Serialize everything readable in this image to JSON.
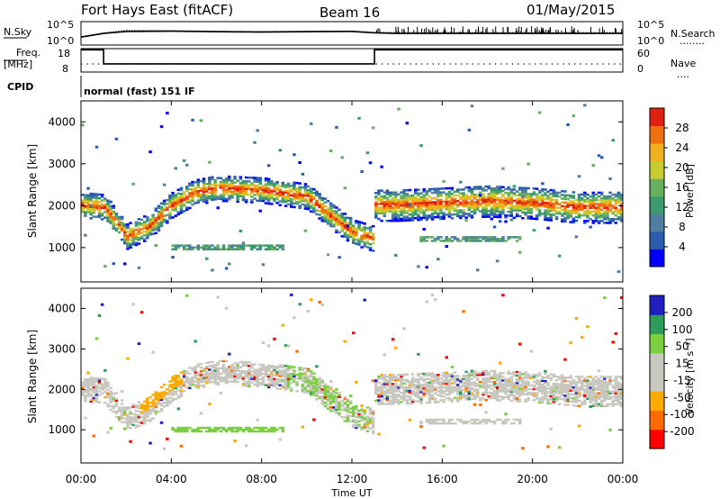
{
  "header": {
    "station": "Fort Hays East (fitACF)",
    "beam": "Beam 16",
    "date": "01/May/2015"
  },
  "noise_panel": {
    "left_label": "N.Sky",
    "left_ticks": [
      "10^5",
      "10^0"
    ],
    "right_ticks": [
      "10^5",
      "10^0"
    ],
    "right_label": "N.Search",
    "right_legend_line": "........"
  },
  "freq_panel": {
    "left_label_1": "Freq.",
    "left_label_2": "[MHz]",
    "left_ticks": [
      "18",
      "8"
    ],
    "right_ticks": [
      "60",
      "0"
    ],
    "right_label": "Nave",
    "right_legend_line": "...."
  },
  "cpid": {
    "label": "CPID",
    "value": "normal (fast) 151 IF"
  },
  "power_panel": {
    "ylabel": "Slant Range [km]",
    "yticks": [
      "4000",
      "3000",
      "2000",
      "1000"
    ],
    "colorbar_label": "Power [dB]",
    "colorbar_ticks": [
      "28",
      "24",
      "20",
      "16",
      "12",
      "8",
      "4"
    ]
  },
  "velocity_panel": {
    "ylabel": "Slant Range [km]",
    "yticks": [
      "4000",
      "3000",
      "2000",
      "1000"
    ],
    "colorbar_label": "Velocity [m s⁻¹]",
    "colorbar_ticks": [
      "200",
      "100",
      "50",
      "15",
      "-15",
      "-50",
      "-100",
      "-200"
    ]
  },
  "xaxis": {
    "ticks": [
      "00:00",
      "04:00",
      "08:00",
      "12:00",
      "16:00",
      "20:00",
      "00:00"
    ],
    "label": "Time UT"
  },
  "colors": {
    "power_scale": [
      "#0000ff",
      "#2a5cb0",
      "#4f7ea0",
      "#3b9a6f",
      "#66b060",
      "#c8cc30",
      "#f0b020",
      "#f07010",
      "#e02010"
    ],
    "velocity_scale": [
      "#ff0000",
      "#ff6a00",
      "#ffaa00",
      "#c8c8c0",
      "#c8c8c0",
      "#7ad040",
      "#2e9c5a",
      "#2020c0"
    ]
  },
  "chart_data": [
    {
      "type": "line",
      "title": "Fort Hays East (fitACF) Beam 16 01/May/2015",
      "panel": "noise",
      "xlabel": "Time UT",
      "x_range_hours": [
        0,
        24
      ],
      "series": [
        {
          "name": "N.Sky",
          "x": [
            0,
            1,
            2,
            4,
            6,
            8,
            10,
            12,
            13,
            14,
            16,
            18,
            20,
            22,
            24
          ],
          "values": [
            50,
            300,
            800,
            900,
            700,
            600,
            700,
            800,
            400,
            300,
            300,
            300,
            300,
            300,
            300
          ]
        },
        {
          "name": "N.Search",
          "x": [
            0,
            1,
            2,
            4,
            6,
            8,
            10,
            12,
            13,
            14,
            16,
            18,
            20,
            22,
            24
          ],
          "values": [
            60,
            400,
            1500,
            1200,
            900,
            800,
            900,
            1000,
            600,
            500,
            500,
            500,
            500,
            500,
            500
          ]
        }
      ],
      "ylim": [
        "10^0",
        "10^5"
      ],
      "yscale": "log"
    },
    {
      "type": "line",
      "panel": "frequency",
      "x_range_hours": [
        0,
        24
      ],
      "series": [
        {
          "name": "Freq. [MHz]",
          "x": [
            0,
            1,
            1,
            13,
            13,
            24
          ],
          "values": [
            17.5,
            17.5,
            11.5,
            11.5,
            17.5,
            17.5
          ]
        },
        {
          "name": "Nave",
          "x": [
            0,
            24
          ],
          "values": [
            13,
            13
          ]
        }
      ],
      "ylim_left": [
        8,
        18
      ],
      "ylim_right": [
        0,
        60
      ]
    },
    {
      "type": "heatmap",
      "panel": "power",
      "ylabel": "Slant Range [km]",
      "xlabel": "Time UT",
      "x_range_hours": [
        0,
        24
      ],
      "ylim": [
        180,
        4500
      ],
      "value_label": "Power [dB]",
      "value_range": [
        0,
        30
      ],
      "main_band_center_km": {
        "x": [
          0,
          1,
          2,
          3,
          4,
          5,
          6,
          8,
          10,
          11,
          12,
          12.9,
          13,
          14,
          16,
          18,
          20,
          22,
          24
        ],
        "values": [
          2000,
          1950,
          1250,
          1500,
          2000,
          2300,
          2400,
          2350,
          2200,
          1750,
          1350,
          1200,
          2000,
          2000,
          2050,
          2100,
          2050,
          1950,
          1950
        ]
      },
      "secondary_echoes_km": [
        {
          "x_start": 4,
          "x_end": 9,
          "range_km": 1000
        },
        {
          "x_start": 15,
          "x_end": 19.5,
          "range_km": 1200
        }
      ]
    },
    {
      "type": "heatmap",
      "panel": "velocity",
      "ylabel": "Slant Range [km]",
      "xlabel": "Time UT",
      "x_range_hours": [
        0,
        24
      ],
      "ylim": [
        180,
        4500
      ],
      "value_label": "Velocity [m s^-1]",
      "value_range": [
        -200,
        200
      ],
      "main_band_center_km": {
        "x": [
          0,
          1,
          2,
          3,
          4,
          5,
          6,
          8,
          10,
          11,
          12,
          12.9,
          13,
          14,
          16,
          18,
          20,
          22,
          24
        ],
        "values": [
          2000,
          1950,
          1250,
          1500,
          2000,
          2300,
          2400,
          2350,
          2200,
          1750,
          1350,
          1200,
          2000,
          2000,
          2050,
          2100,
          2050,
          1950,
          1950
        ]
      }
    }
  ]
}
